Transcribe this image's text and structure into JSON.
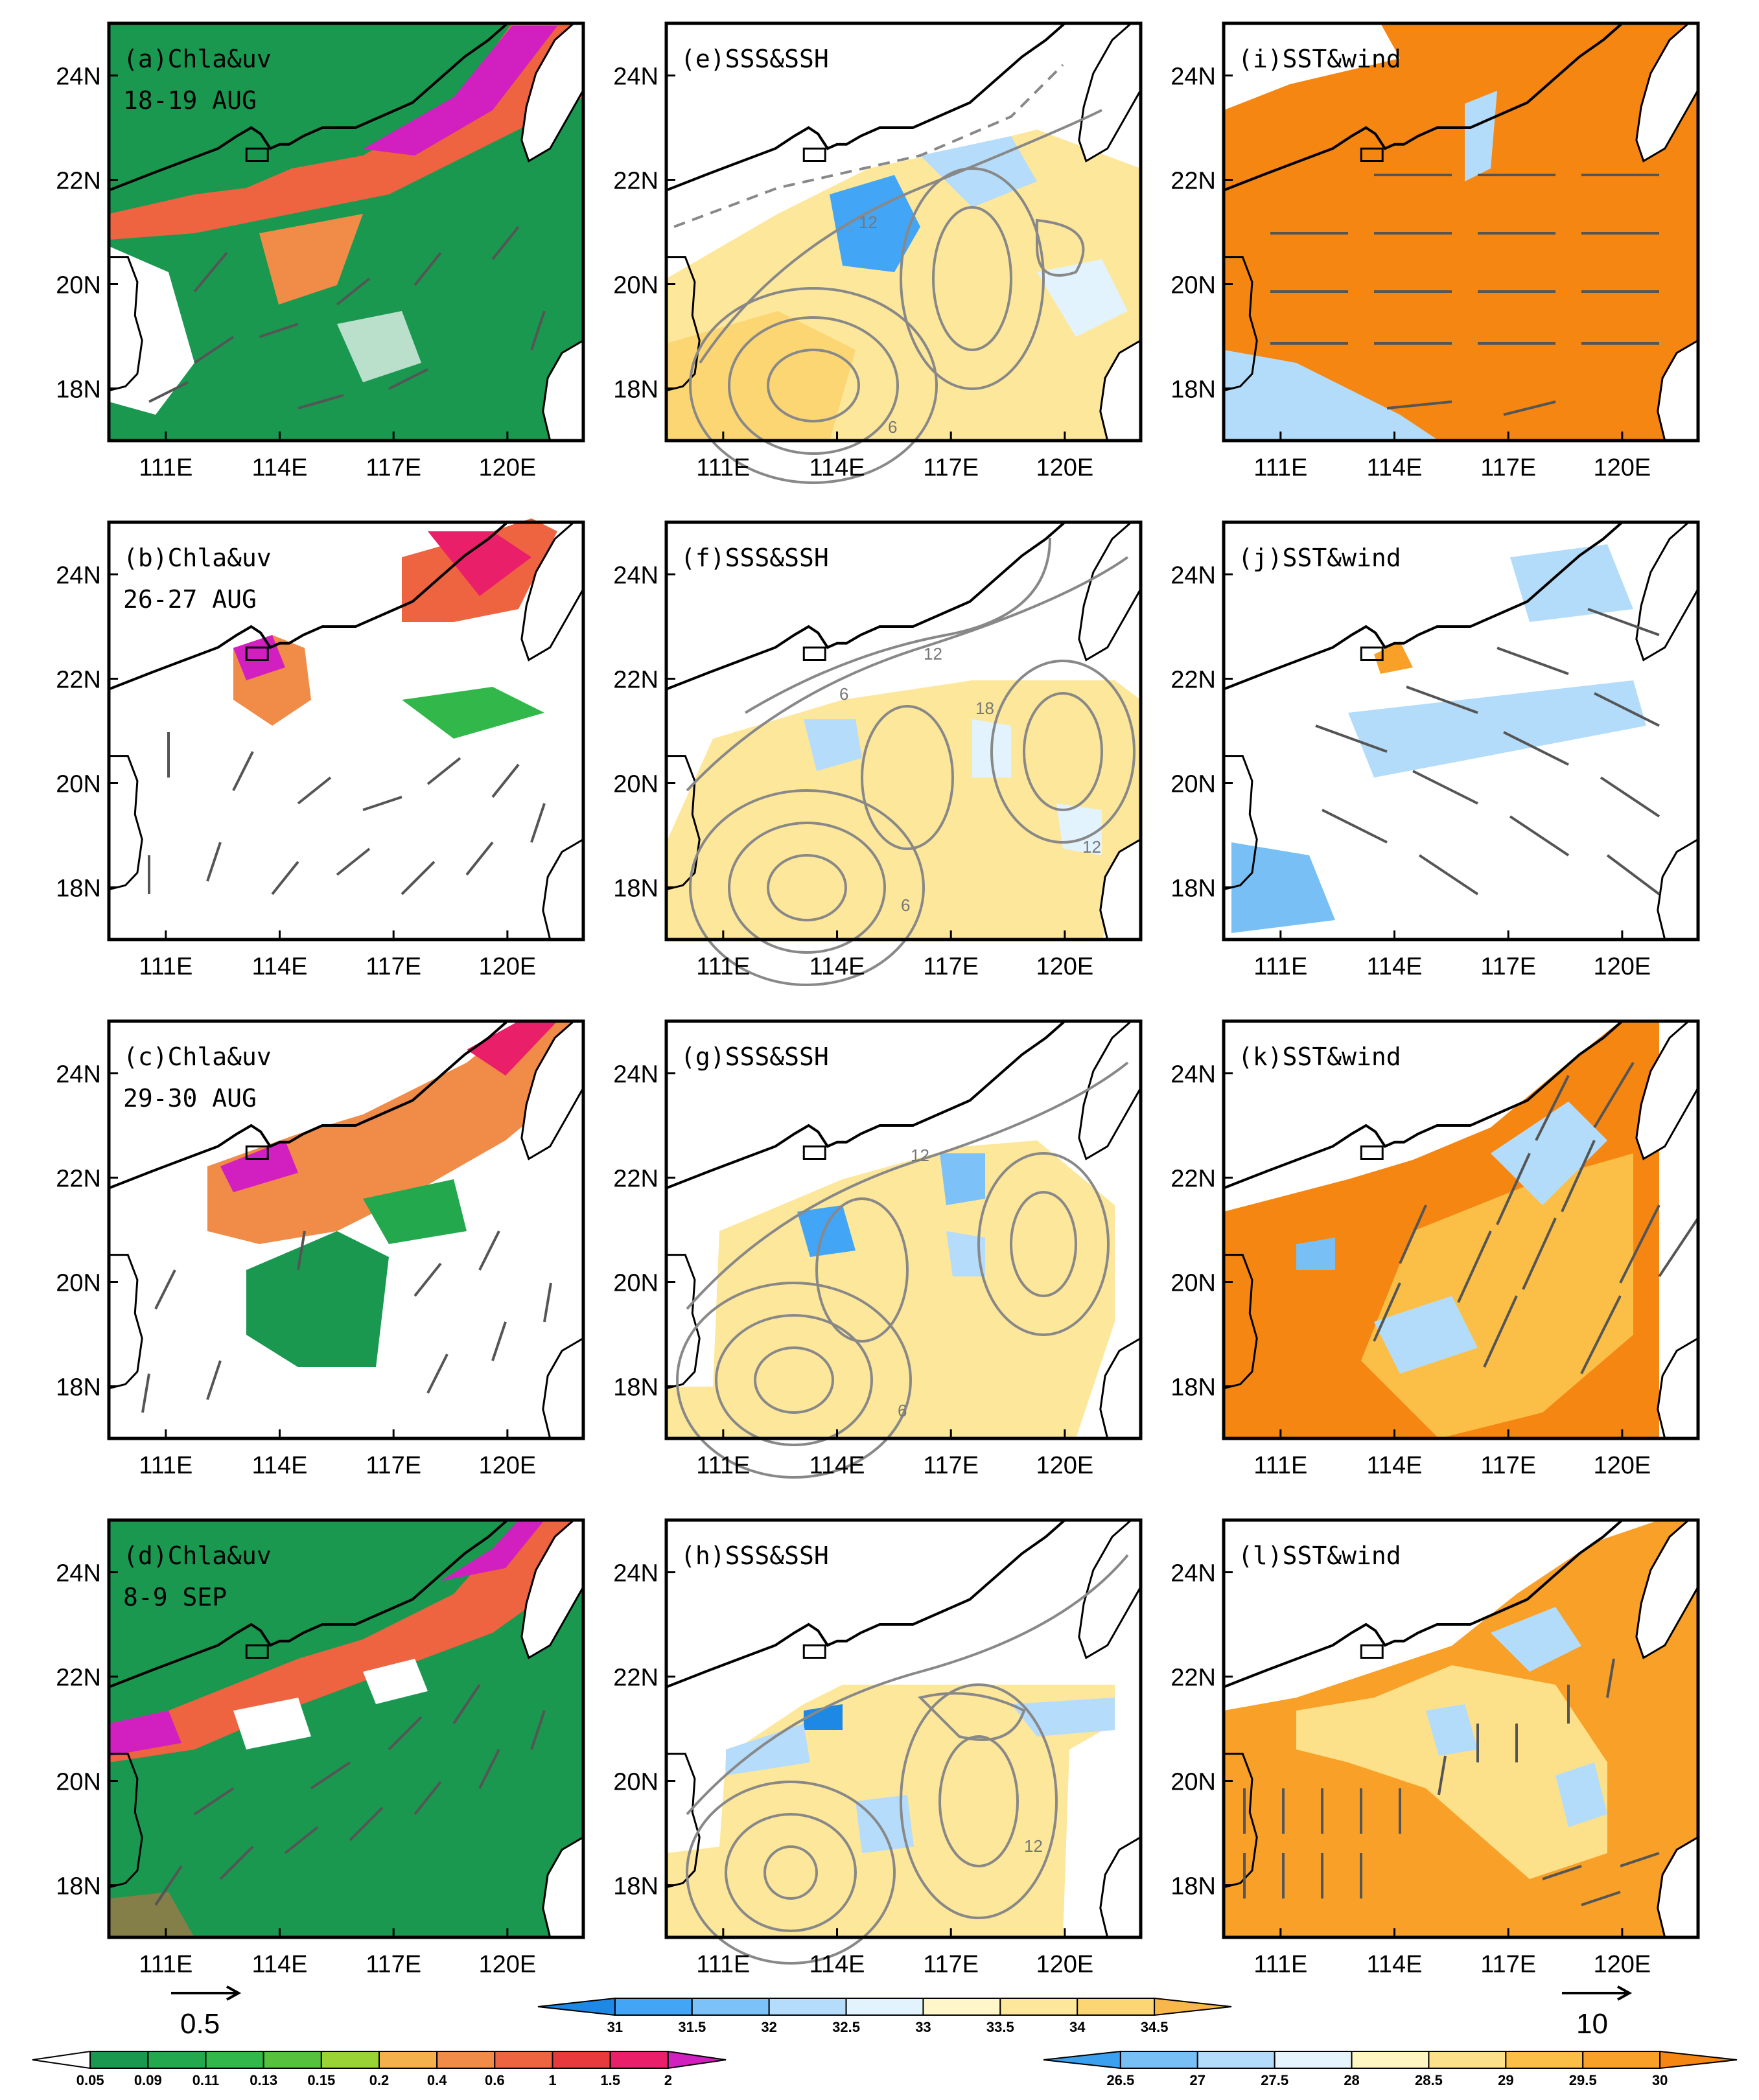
{
  "figure": {
    "columns": [
      {
        "key": "chla",
        "variable": "Chla&uv"
      },
      {
        "key": "sss",
        "variable": "SSS&SSH"
      },
      {
        "key": "sst",
        "variable": "SST&wind"
      }
    ],
    "panels": [
      {
        "id": "a",
        "label": "(a)Chla&uv",
        "date": "18-19 AUG",
        "col": "chla",
        "row": 0
      },
      {
        "id": "b",
        "label": "(b)Chla&uv",
        "date": "26-27 AUG",
        "col": "chla",
        "row": 1
      },
      {
        "id": "c",
        "label": "(c)Chla&uv",
        "date": "29-30 AUG",
        "col": "chla",
        "row": 2
      },
      {
        "id": "d",
        "label": "(d)Chla&uv",
        "date": "8-9 SEP",
        "col": "chla",
        "row": 3
      },
      {
        "id": "e",
        "label": "(e)SSS&SSH",
        "col": "sss",
        "row": 0,
        "contour_labels": [
          "12",
          "6"
        ]
      },
      {
        "id": "f",
        "label": "(f)SSS&SSH",
        "col": "sss",
        "row": 1,
        "contour_labels": [
          "12",
          "6",
          "18",
          "12",
          "6"
        ]
      },
      {
        "id": "g",
        "label": "(g)SSS&SSH",
        "col": "sss",
        "row": 2,
        "contour_labels": [
          "12",
          "6"
        ]
      },
      {
        "id": "h",
        "label": "(h)SSS&SSH",
        "col": "sss",
        "row": 3,
        "contour_labels": [
          "12"
        ]
      },
      {
        "id": "i",
        "label": "(i)SST&wind",
        "col": "sst",
        "row": 0
      },
      {
        "id": "j",
        "label": "(j)SST&wind",
        "col": "sst",
        "row": 1
      },
      {
        "id": "k",
        "label": "(k)SST&wind",
        "col": "sst",
        "row": 2
      },
      {
        "id": "l",
        "label": "(l)SST&wind",
        "col": "sst",
        "row": 3
      }
    ],
    "x_ticks": [
      "111E",
      "114E",
      "117E",
      "120E"
    ],
    "y_ticks": [
      "24N",
      "22N",
      "20N",
      "18N"
    ],
    "lon_range": [
      109.5,
      122
    ],
    "lat_range": [
      17,
      25
    ],
    "lon_ticks": [
      111,
      114,
      117,
      120
    ],
    "lat_ticks": [
      24,
      22,
      20,
      18
    ]
  },
  "legends": {
    "chla": {
      "ref_vector": "0.5",
      "ticks": [
        "0.05",
        "0.09",
        "0.11",
        "0.13",
        "0.15",
        "0.2",
        "0.4",
        "0.6",
        "1",
        "1.5",
        "2"
      ],
      "colors": [
        "#ffffff",
        "#1a9850",
        "#23a84e",
        "#32b84a",
        "#56c13d",
        "#9ad334",
        "#f4b04a",
        "#f18b48",
        "#ee6340",
        "#e83a3d",
        "#ea1f6a",
        "#d21fc0"
      ]
    },
    "sss": {
      "ticks": [
        "31",
        "31.5",
        "32",
        "32.5",
        "33",
        "33.5",
        "34",
        "34.5"
      ],
      "colors": [
        "#1e88e5",
        "#42a5f5",
        "#7cc1f7",
        "#b5dcfb",
        "#e2f3fd",
        "#fff6c9",
        "#fde79a",
        "#fbd673",
        "#f8b74a"
      ]
    },
    "sst": {
      "ref_vector": "10",
      "ticks": [
        "26.5",
        "27",
        "27.5",
        "28",
        "28.5",
        "29",
        "29.5",
        "30"
      ],
      "colors": [
        "#3aa0ef",
        "#77bff5",
        "#b3dcfa",
        "#e6f5fd",
        "#fff6c2",
        "#fde08a",
        "#fbbf47",
        "#f8a028",
        "#f58612"
      ]
    }
  }
}
